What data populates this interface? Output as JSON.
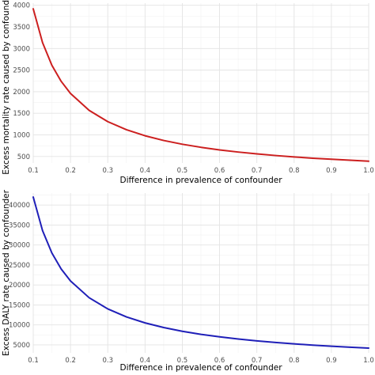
{
  "chart_data": [
    {
      "type": "line",
      "xlabel": "Difference in prevalence of confounder",
      "ylabel": "Excess mortality rate caused by confounder",
      "xlim": [
        0.1,
        1.0
      ],
      "ylim": [
        350,
        4050
      ],
      "xticks": [
        "0.1",
        "0.2",
        "0.3",
        "0.4",
        "0.5",
        "0.6",
        "0.7",
        "0.8",
        "0.9",
        "1.0"
      ],
      "yticks": [
        "500",
        "1000",
        "1500",
        "2000",
        "2500",
        "3000",
        "3500",
        "4000"
      ],
      "grid": true,
      "series": [
        {
          "color": "#cc1f1f",
          "x": [
            0.1,
            0.125,
            0.15,
            0.175,
            0.2,
            0.25,
            0.3,
            0.35,
            0.4,
            0.45,
            0.5,
            0.55,
            0.6,
            0.65,
            0.7,
            0.75,
            0.8,
            0.85,
            0.9,
            0.95,
            1.0
          ],
          "y": [
            3920,
            3136,
            2613,
            2240,
            1960,
            1568,
            1307,
            1120,
            980,
            871,
            784,
            713,
            653,
            603,
            560,
            523,
            490,
            461,
            436,
            413,
            392
          ]
        }
      ]
    },
    {
      "type": "line",
      "xlabel": "Difference in prevalence of confounder",
      "ylabel": "Excess DALY rate caused by confounder",
      "xlim": [
        0.1,
        1.0
      ],
      "ylim": [
        3000,
        43000
      ],
      "xticks": [
        "0.1",
        "0.2",
        "0.3",
        "0.4",
        "0.5",
        "0.6",
        "0.7",
        "0.8",
        "0.9",
        "1.0"
      ],
      "yticks": [
        "5000",
        "10000",
        "15000",
        "20000",
        "25000",
        "30000",
        "35000",
        "40000"
      ],
      "grid": true,
      "series": [
        {
          "color": "#1f1fb8",
          "x": [
            0.1,
            0.125,
            0.15,
            0.175,
            0.2,
            0.25,
            0.3,
            0.35,
            0.4,
            0.45,
            0.5,
            0.55,
            0.6,
            0.65,
            0.7,
            0.75,
            0.8,
            0.85,
            0.9,
            0.95,
            1.0
          ],
          "y": [
            42000,
            33600,
            28000,
            24000,
            21000,
            16800,
            14000,
            12000,
            10500,
            9333,
            8400,
            7636,
            7000,
            6462,
            6000,
            5600,
            5250,
            4941,
            4667,
            4421,
            4200
          ]
        }
      ]
    }
  ]
}
